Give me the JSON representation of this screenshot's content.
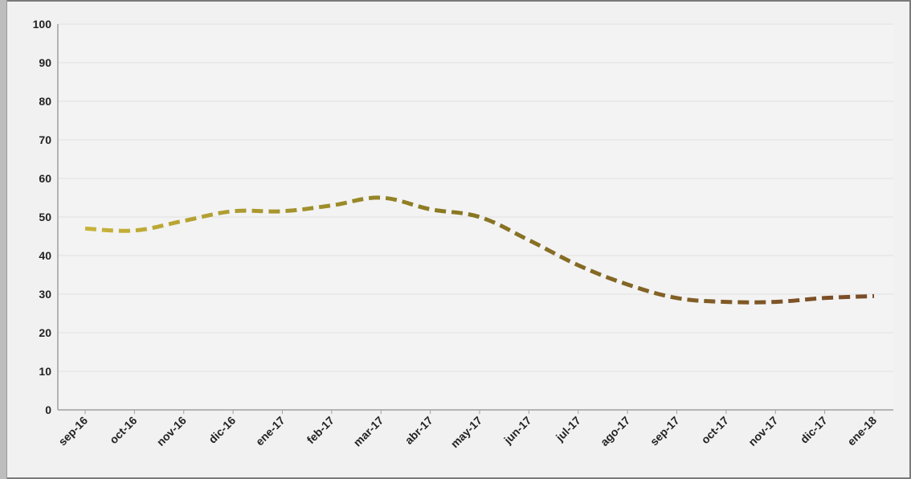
{
  "chart_data": {
    "type": "line",
    "title": "",
    "xlabel": "",
    "ylabel": "",
    "categories": [
      "sep-16",
      "oct-16",
      "nov-16",
      "dic-16",
      "ene-17",
      "feb-17",
      "mar-17",
      "abr-17",
      "may-17",
      "jun-17",
      "jul-17",
      "ago-17",
      "sep-17",
      "oct-17",
      "nov-17",
      "dic-17",
      "ene-18"
    ],
    "series": [
      {
        "values": [
          47,
          46.5,
          49,
          51.5,
          51.5,
          53,
          55,
          52,
          50,
          44,
          37.5,
          32.5,
          29,
          28,
          28,
          29,
          29.5
        ]
      }
    ],
    "ylim": [
      0,
      100
    ],
    "yticks": [
      "0",
      "10",
      "20",
      "30",
      "40",
      "50",
      "60",
      "70",
      "80",
      "90",
      "100"
    ],
    "grid": true,
    "legend": "none",
    "line_style": "dashed",
    "colors": {
      "start": "#c8b43a",
      "mid": "#8a7a22",
      "end": "#7a4a28",
      "grid": "#e2e2e2",
      "axis": "#a0a0a0",
      "plot_bg": "#f3f3f3"
    }
  }
}
